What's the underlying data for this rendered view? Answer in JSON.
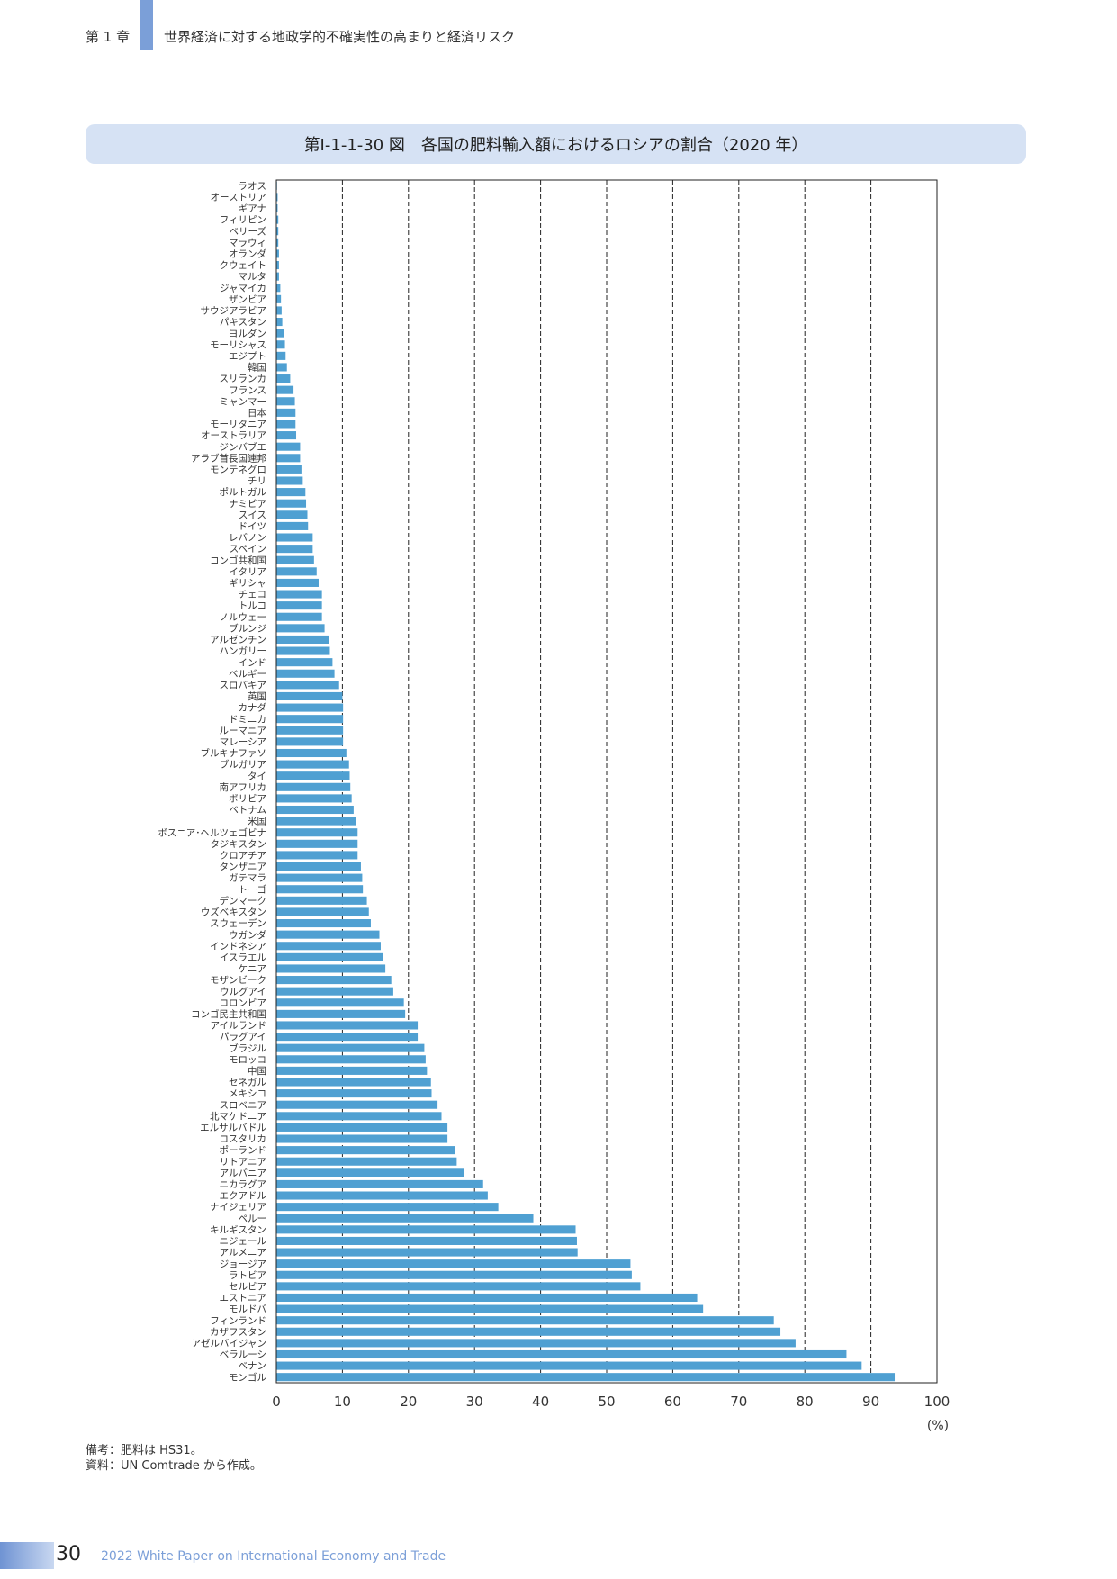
{
  "header": {
    "chapter": "第 1 章",
    "title": "世界経済に対する地政学的不確実性の高まりと経済リスク"
  },
  "figure": {
    "title": "第Ⅰ-1-1-30 図　各国の肥料輸入額におけるロシアの割合（2020 年）"
  },
  "notes": {
    "line1": "備考：肥料は HS31。",
    "line2": "資料：UN Comtrade から作成。"
  },
  "footer": {
    "page": "30",
    "text": "2022 White Paper on International Economy and Trade"
  },
  "colors": {
    "bar": "#4fa0d2",
    "accent": "#7b9fd8",
    "banner": "#d6e2f4"
  },
  "chart_data": {
    "type": "bar",
    "orientation": "horizontal",
    "title": "第Ⅰ-1-1-30 図　各国の肥料輸入額におけるロシアの割合（2020 年）",
    "unit_label": "(%)",
    "xlim": [
      0,
      100
    ],
    "xticks": [
      0,
      10,
      20,
      30,
      40,
      50,
      60,
      70,
      80,
      90,
      100
    ],
    "grid": "vertical dashed",
    "categories": [
      "ラオス",
      "オーストリア",
      "ギアナ",
      "フィリピン",
      "ベリーズ",
      "マラウィ",
      "オランダ",
      "クウェイト",
      "マルタ",
      "ジャマイカ",
      "ザンビア",
      "サウジアラビア",
      "パキスタン",
      "ヨルダン",
      "モーリシャス",
      "エジプト",
      "韓国",
      "スリランカ",
      "フランス",
      "ミャンマー",
      "日本",
      "モーリタニア",
      "オーストラリア",
      "ジンバブエ",
      "アラブ首長国連邦",
      "モンテネグロ",
      "チリ",
      "ポルトガル",
      "ナミビア",
      "スイス",
      "ドイツ",
      "レバノン",
      "スペイン",
      "コンゴ共和国",
      "イタリア",
      "ギリシャ",
      "チェコ",
      "トルコ",
      "ノルウェー",
      "ブルンジ",
      "アルゼンチン",
      "ハンガリー",
      "インド",
      "ベルギー",
      "スロバキア",
      "英国",
      "カナダ",
      "ドミニカ",
      "ルーマニア",
      "マレーシア",
      "ブルキナファソ",
      "ブルガリア",
      "タイ",
      "南アフリカ",
      "ボリビア",
      "ベトナム",
      "米国",
      "ボスニア･ヘルツェゴビナ",
      "タジキスタン",
      "クロアチア",
      "タンザニア",
      "ガテマラ",
      "トーゴ",
      "デンマーク",
      "ウズベキスタン",
      "スウェーデン",
      "ウガンダ",
      "インドネシア",
      "イスラエル",
      "ケニア",
      "モザンビーク",
      "ウルグアイ",
      "コロンビア",
      "コンゴ民主共和国",
      "アイルランド",
      "パラグアイ",
      "ブラジル",
      "モロッコ",
      "中国",
      "セネガル",
      "メキシコ",
      "スロベニア",
      "北マケドニア",
      "エルサルバドル",
      "コスタリカ",
      "ポーランド",
      "リトアニア",
      "アルバニア",
      "ニカラグア",
      "エクアドル",
      "ナイジェリア",
      "ペルー",
      "キルギスタン",
      "ニジェール",
      "アルメニア",
      "ジョージア",
      "ラトビア",
      "セルビア",
      "エストニア",
      "モルドバ",
      "フィンランド",
      "カザフスタン",
      "アゼルバイジャン",
      "ベラルーシ",
      "ベナン",
      "モンゴル"
    ],
    "values": [
      0.1,
      0.2,
      0.2,
      0.3,
      0.3,
      0.3,
      0.4,
      0.4,
      0.4,
      0.6,
      0.7,
      0.8,
      0.9,
      1.2,
      1.3,
      1.4,
      1.6,
      2.1,
      2.6,
      2.8,
      2.9,
      2.9,
      3.0,
      3.6,
      3.6,
      3.8,
      4.0,
      4.4,
      4.5,
      4.7,
      4.8,
      5.5,
      5.5,
      5.7,
      6.1,
      6.4,
      6.9,
      6.9,
      6.9,
      7.3,
      8.0,
      8.1,
      8.5,
      8.8,
      9.5,
      10.0,
      10.1,
      10.1,
      10.1,
      10.1,
      10.6,
      11.0,
      11.1,
      11.2,
      11.4,
      11.7,
      12.1,
      12.3,
      12.3,
      12.3,
      12.8,
      13.0,
      13.1,
      13.7,
      14.0,
      14.3,
      15.6,
      15.8,
      16.1,
      16.5,
      17.4,
      17.7,
      19.3,
      19.5,
      21.4,
      21.4,
      22.4,
      22.6,
      22.8,
      23.4,
      23.5,
      24.4,
      25.0,
      25.9,
      25.9,
      27.1,
      27.3,
      28.4,
      31.3,
      32.0,
      33.6,
      38.9,
      45.3,
      45.5,
      45.6,
      53.6,
      53.8,
      55.1,
      63.7,
      64.6,
      75.3,
      76.3,
      78.6,
      86.3,
      88.6,
      93.6
    ]
  }
}
